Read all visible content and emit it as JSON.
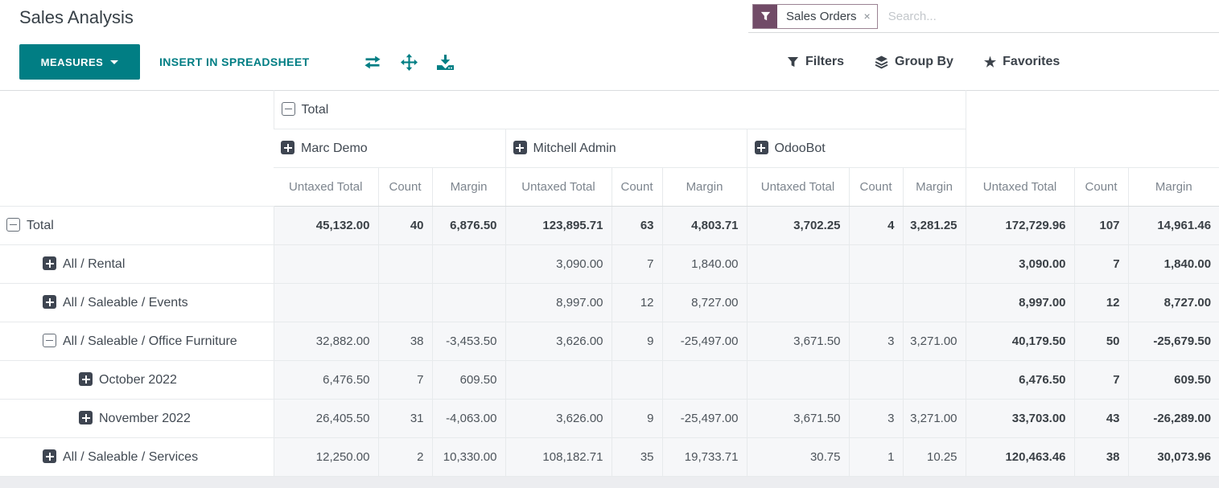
{
  "page": {
    "title": "Sales Analysis"
  },
  "toolbar": {
    "measures_label": "MEASURES",
    "insert_spreadsheet_label": "INSERT IN SPREADSHEET",
    "icons": [
      "flip-axis",
      "expand-all",
      "download"
    ]
  },
  "search": {
    "facet_label": "Sales Orders",
    "facet_remove": "×",
    "placeholder": "Search...",
    "filters_label": "Filters",
    "group_by_label": "Group By",
    "favorites_label": "Favorites"
  },
  "colors": {
    "accent_teal": "#017E84",
    "facet_purple": "#714B67",
    "cell_bg": "#f6f7f9",
    "border": "#e7eaec"
  },
  "pivot": {
    "column_root": {
      "label": "Total",
      "expanded": true
    },
    "column_groups": [
      {
        "label": "Marc Demo",
        "expanded": false
      },
      {
        "label": "Mitchell Admin",
        "expanded": false
      },
      {
        "label": "OdooBot",
        "expanded": false
      }
    ],
    "measures": [
      "Untaxed Total",
      "Count",
      "Margin"
    ],
    "rows": [
      {
        "label": "Total",
        "indent": 0,
        "expanded": true,
        "bold": true,
        "cells": [
          "45,132.00",
          "40",
          "6,876.50",
          "123,895.71",
          "63",
          "4,803.71",
          "3,702.25",
          "4",
          "3,281.25",
          "172,729.96",
          "107",
          "14,961.46"
        ]
      },
      {
        "label": "All / Rental",
        "indent": 1,
        "expanded": false,
        "bold": false,
        "cells": [
          "",
          "",
          "",
          "3,090.00",
          "7",
          "1,840.00",
          "",
          "",
          "",
          "3,090.00",
          "7",
          "1,840.00"
        ]
      },
      {
        "label": "All / Saleable / Events",
        "indent": 1,
        "expanded": false,
        "bold": false,
        "cells": [
          "",
          "",
          "",
          "8,997.00",
          "12",
          "8,727.00",
          "",
          "",
          "",
          "8,997.00",
          "12",
          "8,727.00"
        ]
      },
      {
        "label": "All / Saleable / Office Furniture",
        "indent": 1,
        "expanded": true,
        "bold": false,
        "cells": [
          "32,882.00",
          "38",
          "-3,453.50",
          "3,626.00",
          "9",
          "-25,497.00",
          "3,671.50",
          "3",
          "3,271.00",
          "40,179.50",
          "50",
          "-25,679.50"
        ]
      },
      {
        "label": "October 2022",
        "indent": 2,
        "expanded": false,
        "bold": false,
        "cells": [
          "6,476.50",
          "7",
          "609.50",
          "",
          "",
          "",
          "",
          "",
          "",
          "6,476.50",
          "7",
          "609.50"
        ]
      },
      {
        "label": "November 2022",
        "indent": 2,
        "expanded": false,
        "bold": false,
        "cells": [
          "26,405.50",
          "31",
          "-4,063.00",
          "3,626.00",
          "9",
          "-25,497.00",
          "3,671.50",
          "3",
          "3,271.00",
          "33,703.00",
          "43",
          "-26,289.00"
        ]
      },
      {
        "label": "All / Saleable / Services",
        "indent": 1,
        "expanded": false,
        "bold": false,
        "cells": [
          "12,250.00",
          "2",
          "10,330.00",
          "108,182.71",
          "35",
          "19,733.71",
          "30.75",
          "1",
          "10.25",
          "120,463.46",
          "38",
          "30,073.96"
        ]
      }
    ]
  }
}
